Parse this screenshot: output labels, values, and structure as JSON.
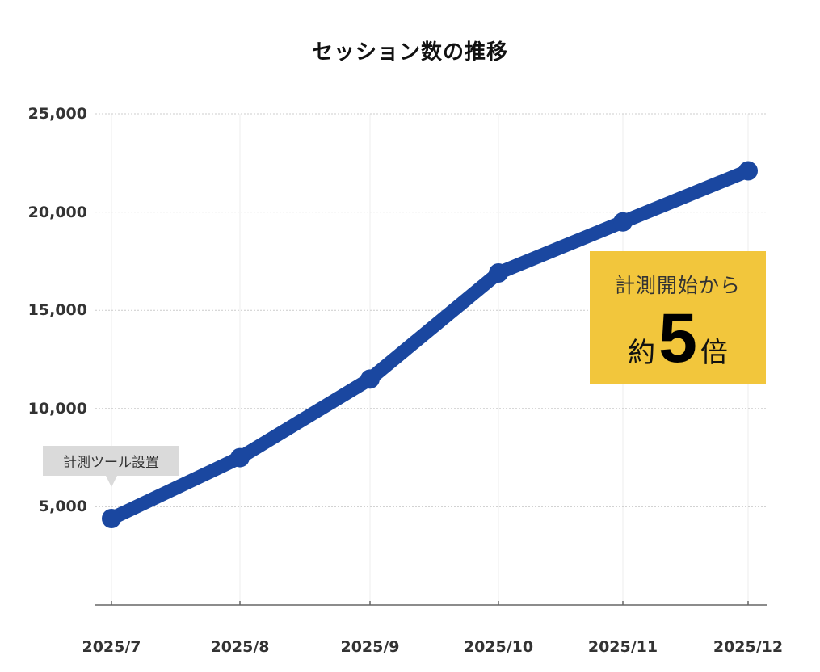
{
  "title": "セッション数の推移",
  "chart_data": {
    "type": "line",
    "title": "セッション数の推移",
    "xlabel": "",
    "ylabel": "",
    "categories": [
      "2025/7",
      "2025/8",
      "2025/9",
      "2025/10",
      "2025/11",
      "2025/12"
    ],
    "series": [
      {
        "name": "セッション数",
        "color": "#1a47a0",
        "values": [
          4400,
          7500,
          11500,
          16900,
          19500,
          22100
        ]
      }
    ],
    "ylim": [
      0,
      25000
    ],
    "yticks": [
      5000,
      10000,
      15000,
      20000,
      25000
    ],
    "ytick_labels": [
      "5,000",
      "10,000",
      "15,000",
      "20,000",
      "25,000"
    ],
    "grid": true,
    "legend": "none",
    "annotations": [
      {
        "text": "計測ツール設置",
        "at": "2025/7",
        "type": "callout"
      },
      {
        "text": "計測開始から 約5倍",
        "type": "highlight-box"
      }
    ]
  },
  "callout": {
    "label": "計測ツール設置"
  },
  "badge": {
    "line1": "計測開始から",
    "prefix": "約",
    "number": "5",
    "suffix": "倍",
    "color": "#f2c63c"
  },
  "colors": {
    "line": "#1a47a0",
    "grid": "#cccccc",
    "axis": "#666666",
    "badge": "#f2c63c"
  }
}
